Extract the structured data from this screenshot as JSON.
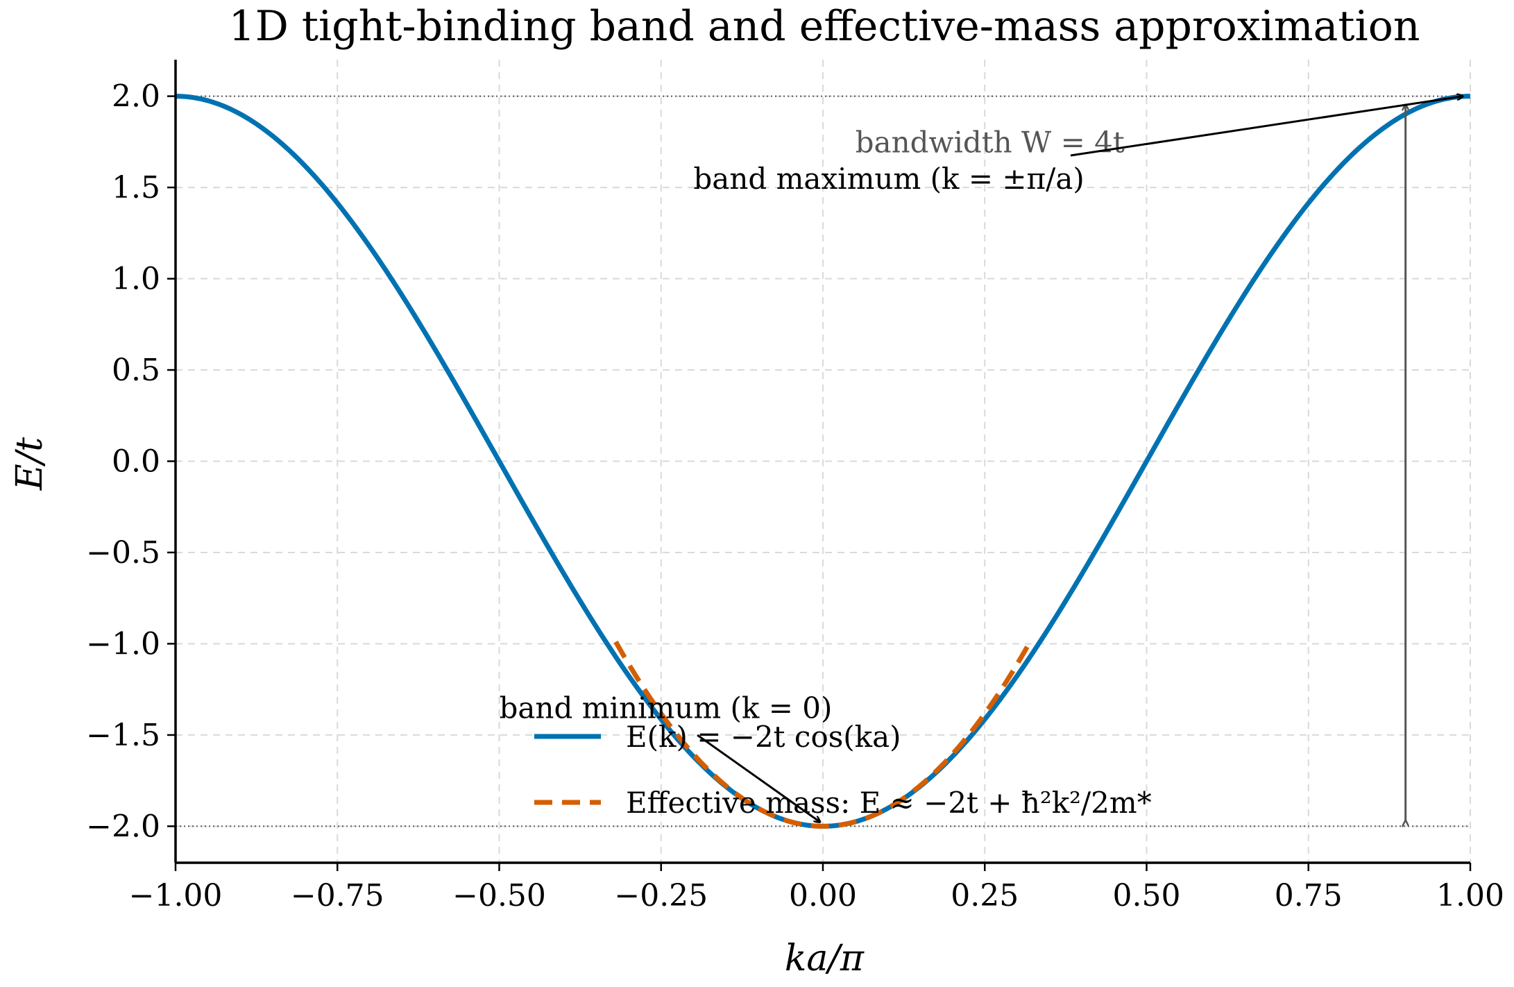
{
  "chart_data": {
    "type": "line",
    "title": "1D tight-binding band and effective-mass approximation",
    "xlabel": "ka/π",
    "ylabel": "E/t",
    "xlim": [
      -1.0,
      1.0
    ],
    "ylim": [
      -2.2,
      2.2
    ],
    "x_ticks": [
      -1.0,
      -0.75,
      -0.5,
      -0.25,
      0.0,
      0.25,
      0.5,
      0.75,
      1.0
    ],
    "x_tick_labels": [
      "−1.00",
      "−0.75",
      "−0.50",
      "−0.25",
      "0.00",
      "0.25",
      "0.50",
      "0.75",
      "1.00"
    ],
    "y_ticks": [
      2.0,
      1.5,
      1.0,
      0.5,
      0.0,
      -0.5,
      -1.0,
      -1.5,
      -2.0
    ],
    "y_tick_labels": [
      "2.0",
      "1.5",
      "1.0",
      "0.5",
      "0.0",
      "−0.5",
      "−1.0",
      "−1.5",
      "−2.0"
    ],
    "grid": true,
    "legend_position": "lower-center",
    "series": [
      {
        "name": "E(k) = −2t cos(ka)",
        "style": "solid",
        "color": "#0072B2",
        "x": [
          -1.0,
          -0.9,
          -0.8,
          -0.7,
          -0.6,
          -0.5,
          -0.4,
          -0.3,
          -0.2,
          -0.1,
          0.0,
          0.1,
          0.2,
          0.3,
          0.4,
          0.5,
          0.6,
          0.7,
          0.8,
          0.9,
          1.0
        ],
        "y": [
          2.0,
          1.902,
          1.618,
          1.176,
          0.618,
          0.0,
          -0.618,
          -1.176,
          -1.618,
          -1.902,
          -2.0,
          -1.902,
          -1.618,
          -1.176,
          -0.618,
          0.0,
          0.618,
          1.176,
          1.618,
          1.902,
          2.0
        ]
      },
      {
        "name": "Effective mass: E ≈ −2t + ħ²k²/2m*",
        "style": "dashed",
        "color": "#D55E00",
        "x": [
          -0.32,
          -0.3,
          -0.25,
          -0.2,
          -0.15,
          -0.1,
          -0.05,
          0.0,
          0.05,
          0.1,
          0.15,
          0.2,
          0.25,
          0.3,
          0.32
        ],
        "y": [
          -0.989,
          -1.112,
          -1.383,
          -1.605,
          -1.778,
          -1.901,
          -1.975,
          -2.0,
          -1.975,
          -1.901,
          -1.778,
          -1.605,
          -1.383,
          -1.112,
          -0.989
        ]
      }
    ],
    "reference_lines": [
      {
        "y": 2.0,
        "style": "dotted",
        "color": "#555555"
      },
      {
        "y": -2.0,
        "style": "dotted",
        "color": "#555555"
      }
    ],
    "annotations": {
      "band_minimum": {
        "text": "band minimum (k = 0)",
        "point": [
          0.0,
          -2.0
        ],
        "text_pos": [
          -0.5,
          -1.35
        ]
      },
      "band_maximum": {
        "text": "band maximum (k = ±π/a)",
        "point": [
          0.98,
          2.0
        ],
        "text_pos": [
          -0.2,
          1.55
        ]
      },
      "bandwidth": {
        "text": "bandwidth W = 4t",
        "x": 0.9,
        "from": -2.0,
        "to": 2.0,
        "text_pos": [
          0.05,
          1.75
        ]
      }
    }
  }
}
